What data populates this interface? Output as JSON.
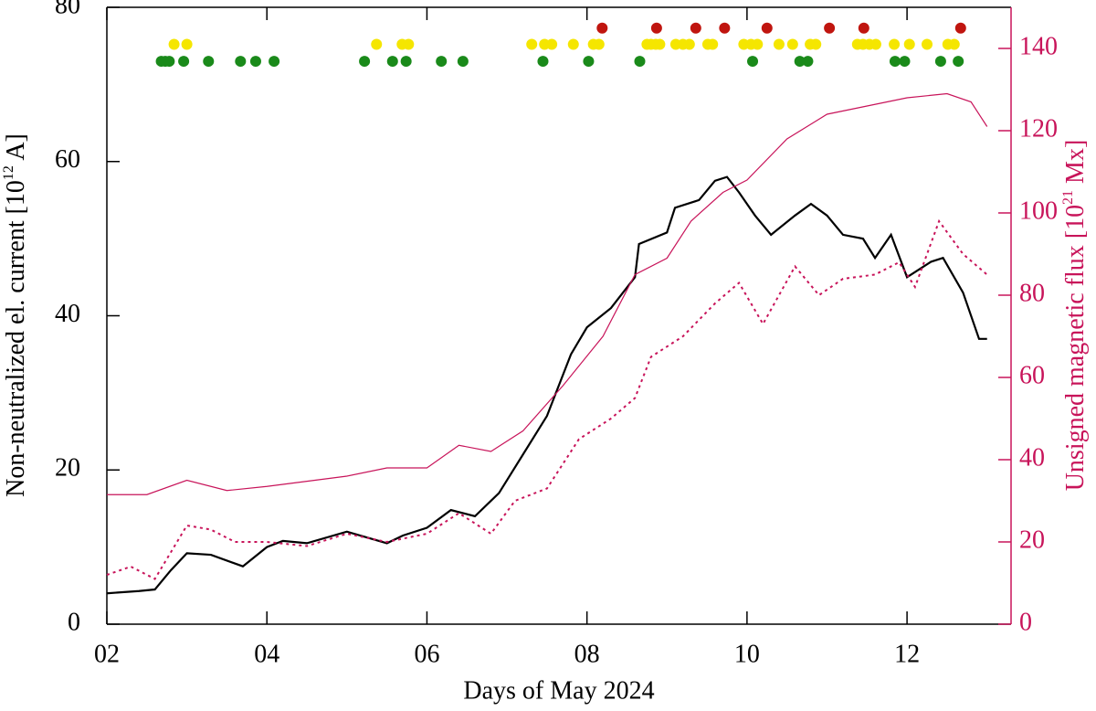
{
  "chart_data": {
    "type": "line",
    "xlabel": "Days of May 2024",
    "ylabel": [
      "Non-neutralized el. current [10",
      "12",
      " A]"
    ],
    "y2label": [
      "Unsigned magnetic flux [10",
      "21",
      " Mx]"
    ],
    "xlim": [
      2,
      13.3
    ],
    "ylim": [
      0,
      80
    ],
    "y2lim": [
      0,
      150
    ],
    "xticks": [
      {
        "value": 2,
        "label": "02"
      },
      {
        "value": 4,
        "label": "04"
      },
      {
        "value": 6,
        "label": "06"
      },
      {
        "value": 8,
        "label": "08"
      },
      {
        "value": 10,
        "label": "10"
      },
      {
        "value": 12,
        "label": "12"
      }
    ],
    "yticks": [
      0,
      20,
      40,
      60,
      80
    ],
    "y2ticks": [
      0,
      20,
      40,
      60,
      80,
      100,
      120,
      140
    ],
    "y2color": "#c8145a",
    "series": [
      {
        "style": "solid",
        "color": "#000000",
        "axis": "y",
        "x": [
          2,
          2.4,
          2.6,
          2.8,
          3.0,
          3.3,
          3.7,
          4.0,
          4.2,
          4.5,
          5.0,
          5.5,
          5.7,
          6.0,
          6.3,
          6.6,
          6.9,
          7.2,
          7.5,
          7.8,
          8.0,
          8.3,
          8.6,
          8.65,
          9.0,
          9.1,
          9.4,
          9.6,
          9.75,
          9.9,
          10.1,
          10.3,
          10.6,
          10.8,
          11.0,
          11.2,
          11.45,
          11.6,
          11.8,
          12.0,
          12.3,
          12.45,
          12.7,
          12.9,
          13.0
        ],
        "values": [
          4,
          4.3,
          4.5,
          7,
          9.2,
          9,
          7.5,
          10,
          10.8,
          10.5,
          12,
          10.5,
          11.5,
          12.5,
          14.8,
          14,
          17,
          22,
          27,
          35,
          38.5,
          41,
          45,
          49.3,
          50.8,
          54,
          55,
          57.5,
          58,
          56,
          53,
          50.5,
          53,
          54.5,
          53,
          50.5,
          50,
          47.5,
          50.5,
          45,
          47,
          47.5,
          43,
          37,
          37
        ]
      },
      {
        "style": "solid",
        "color": "#c8145a",
        "axis": "y2",
        "x": [
          2,
          2.5,
          3.0,
          3.5,
          4.0,
          5.0,
          5.5,
          6.0,
          6.4,
          6.8,
          7.2,
          7.7,
          8.2,
          8.6,
          9.0,
          9.3,
          9.7,
          10.0,
          10.5,
          11.0,
          11.5,
          12.0,
          12.5,
          12.8,
          13.0
        ],
        "values": [
          31.5,
          31.5,
          35,
          32.5,
          33.5,
          36,
          38,
          38,
          43.5,
          42,
          47,
          58,
          70,
          85,
          89,
          98,
          105,
          108,
          118,
          124,
          126,
          128,
          129,
          127,
          121
        ]
      },
      {
        "style": "dotted",
        "color": "#c8145a",
        "axis": "y2",
        "x": [
          2,
          2.3,
          2.6,
          3.0,
          3.3,
          3.6,
          4.0,
          4.5,
          5.0,
          5.5,
          6.0,
          6.4,
          6.8,
          7.1,
          7.5,
          7.9,
          8.3,
          8.6,
          8.8,
          9.2,
          9.6,
          9.9,
          10.2,
          10.6,
          10.9,
          11.2,
          11.6,
          11.9,
          12.1,
          12.4,
          12.7,
          13.0
        ],
        "values": [
          12,
          14,
          11,
          24,
          23,
          20,
          20,
          19,
          22,
          20,
          22,
          27,
          22,
          30,
          33,
          45,
          50,
          55,
          65,
          70,
          78,
          83,
          73,
          87,
          80,
          84,
          85,
          88,
          82,
          98,
          90,
          85
        ]
      },
      {
        "style": "markers",
        "color": "#1a8a1a",
        "axis": "y",
        "x": [
          2.68,
          2.73,
          2.78,
          2.96,
          3.27,
          3.67,
          3.86,
          4.09,
          5.22,
          5.57,
          5.74,
          6.18,
          6.45,
          7.45,
          8.02,
          8.66,
          10.07,
          10.66,
          10.76,
          11.85,
          11.97,
          12.42,
          12.64
        ],
        "values": [
          73,
          73,
          73,
          73,
          73,
          73,
          73,
          73,
          73,
          73,
          73,
          73,
          73,
          73,
          73,
          73,
          73,
          73,
          73,
          73,
          73,
          73,
          73
        ]
      },
      {
        "style": "markers",
        "color": "#f5e600",
        "axis": "y",
        "x": [
          2.84,
          3.0,
          5.37,
          5.69,
          5.77,
          7.31,
          7.47,
          7.56,
          7.83,
          8.08,
          8.15,
          8.75,
          8.8,
          8.86,
          8.91,
          9.11,
          9.2,
          9.28,
          9.51,
          9.57,
          9.96,
          10.05,
          10.13,
          10.4,
          10.57,
          10.79,
          10.86,
          11.38,
          11.45,
          11.53,
          11.61,
          11.84,
          12.03,
          12.25,
          12.51,
          12.59
        ],
        "values": [
          75.2,
          75.2,
          75.2,
          75.2,
          75.2,
          75.2,
          75.2,
          75.2,
          75.2,
          75.2,
          75.2,
          75.2,
          75.2,
          75.2,
          75.2,
          75.2,
          75.2,
          75.2,
          75.2,
          75.2,
          75.2,
          75.2,
          75.2,
          75.2,
          75.2,
          75.2,
          75.2,
          75.2,
          75.2,
          75.2,
          75.2,
          75.2,
          75.2,
          75.2,
          75.2,
          75.2
        ]
      },
      {
        "style": "markers",
        "color": "#c0150f",
        "axis": "y",
        "x": [
          8.19,
          8.87,
          9.36,
          9.72,
          10.25,
          11.03,
          11.46,
          12.67
        ],
        "values": [
          77.3,
          77.3,
          77.3,
          77.3,
          77.3,
          77.3,
          77.3,
          77.3
        ]
      }
    ]
  }
}
